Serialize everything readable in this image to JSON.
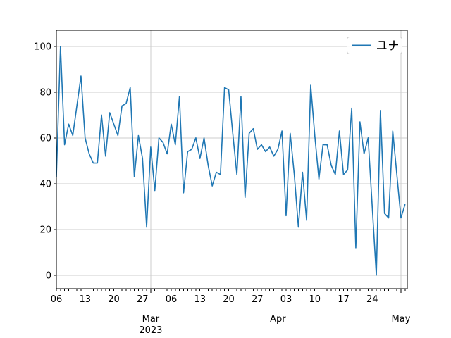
{
  "figure": {
    "background": "#ffffff"
  },
  "legend": {
    "label": "ユナ",
    "position": "upper right",
    "line_color": "#1f77b4"
  },
  "colors": {
    "series": "#1f77b4",
    "grid": "#cccccc",
    "spine": "#000000",
    "tick_text": "#000000",
    "legend_border": "#cccccc"
  },
  "chart_data": {
    "type": "line",
    "title": "",
    "xlabel": "",
    "ylabel": "",
    "grid": true,
    "legend_position": "upper right",
    "x_start_date": "2023-02-06",
    "x_end_date": "2023-05-02",
    "x_freq": "daily",
    "ylim": [
      -5.9,
      107.0
    ],
    "yticks": [
      0,
      20,
      40,
      60,
      80,
      100
    ],
    "x_week_ticks": [
      {
        "day": 0,
        "label": "06"
      },
      {
        "day": 7,
        "label": "13"
      },
      {
        "day": 14,
        "label": "20"
      },
      {
        "day": 21,
        "label": "27"
      },
      {
        "day": 28,
        "label": "06"
      },
      {
        "day": 35,
        "label": "13"
      },
      {
        "day": 42,
        "label": "20"
      },
      {
        "day": 49,
        "label": "27"
      },
      {
        "day": 56,
        "label": "03"
      },
      {
        "day": 63,
        "label": "10"
      },
      {
        "day": 70,
        "label": "17"
      },
      {
        "day": 77,
        "label": "24"
      }
    ],
    "x_month_ticks": [
      {
        "day": 23,
        "label": "Mar",
        "sub": "2023"
      },
      {
        "day": 54,
        "label": "Apr",
        "sub": ""
      },
      {
        "day": 84,
        "label": "May",
        "sub": ""
      }
    ],
    "series": [
      {
        "name": "ユナ",
        "color": "#1f77b4",
        "values": [
          43,
          100,
          57,
          66,
          61,
          74,
          87,
          60,
          53,
          49,
          49,
          70,
          52,
          71,
          66,
          61,
          74,
          75,
          82,
          43,
          61,
          51,
          21,
          56,
          37,
          60,
          58,
          53,
          66,
          57,
          78,
          36,
          54,
          55,
          60,
          51,
          60,
          48,
          39,
          45,
          44,
          82,
          81,
          62,
          44,
          78,
          34,
          62,
          64,
          55,
          57,
          54,
          56,
          52,
          55,
          63,
          26,
          62,
          44,
          21,
          45,
          24,
          83,
          61,
          42,
          57,
          57,
          48,
          44,
          63,
          44,
          46,
          73,
          12,
          67,
          53,
          60,
          30,
          0,
          72,
          27,
          25,
          63,
          44,
          25,
          31
        ]
      }
    ]
  }
}
